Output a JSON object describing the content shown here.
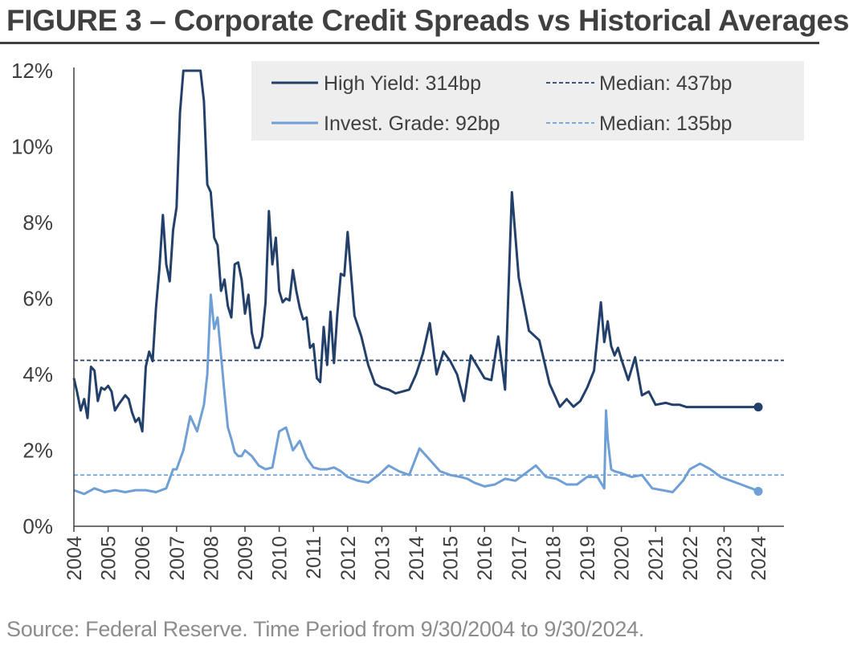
{
  "title": "FIGURE 3 – Corporate Credit Spreads vs Historical Averages",
  "source": "Source: Federal Reserve. Time Period from 9/30/2004 to 9/30/2024.",
  "colors": {
    "high_yield": "#23406b",
    "invest_grade": "#6f9fd4",
    "legend_bg": "#eeeeee",
    "axis": "#404040",
    "text": "#3f3f3f"
  },
  "chart_data": {
    "type": "line",
    "title": "FIGURE 3 – Corporate Credit Spreads vs Historical Averages",
    "xlabel": "",
    "ylabel": "",
    "xlim": [
      2004,
      2024.75
    ],
    "ylim": [
      0,
      12
    ],
    "y_ticks": [
      "0%",
      "2%",
      "4%",
      "6%",
      "8%",
      "10%",
      "12%"
    ],
    "x_ticks": [
      "2004",
      "2005",
      "2006",
      "2007",
      "2008",
      "2009",
      "2010",
      "2011",
      "2012",
      "2013",
      "2014",
      "2015",
      "2016",
      "2017",
      "2018",
      "2019",
      "2020",
      "2021",
      "2022",
      "2023",
      "2024"
    ],
    "legend": {
      "position": "top-right",
      "entries": [
        {
          "label": "High Yield: 314bp",
          "series": "high_yield",
          "style": "solid"
        },
        {
          "label": "Median: 437bp",
          "series": "high_yield_median",
          "style": "dashed"
        },
        {
          "label": "Invest. Grade: 92bp",
          "series": "invest_grade",
          "style": "solid"
        },
        {
          "label": "Median: 135bp",
          "series": "invest_grade_median",
          "style": "dashed"
        }
      ]
    },
    "medians": {
      "high_yield": 4.37,
      "invest_grade": 1.35
    },
    "series": [
      {
        "name": "High Yield",
        "x": [
          2004.0,
          2004.1,
          2004.2,
          2004.3,
          2004.4,
          2004.5,
          2004.6,
          2004.7,
          2004.8,
          2004.9,
          2005.0,
          2005.1,
          2005.2,
          2005.3,
          2005.5,
          2005.6,
          2005.7,
          2005.8,
          2005.9,
          2006.0,
          2006.1,
          2006.2,
          2006.3,
          2006.4,
          2006.5,
          2006.6,
          2006.7,
          2006.8,
          2006.9,
          2007.0,
          2007.1,
          2007.2,
          2007.3,
          2007.4,
          2007.5,
          2007.6,
          2007.7,
          2007.8,
          2007.9,
          2008.0,
          2008.1,
          2008.2,
          2008.3,
          2008.4,
          2008.5,
          2008.6,
          2008.7,
          2008.8,
          2008.9,
          2009.0,
          2009.1,
          2009.2,
          2009.3,
          2009.4,
          2009.5,
          2009.6,
          2009.7,
          2009.8,
          2009.9,
          2010.0,
          2010.1,
          2010.2,
          2010.3,
          2010.4,
          2010.5,
          2010.6,
          2010.7,
          2010.8,
          2010.9,
          2011.0,
          2011.1,
          2011.2,
          2011.3,
          2011.4,
          2011.5,
          2011.6,
          2011.7,
          2011.8,
          2011.9,
          2012.0,
          2012.2,
          2012.4,
          2012.6,
          2012.8,
          2013.0,
          2013.2,
          2013.4,
          2013.6,
          2013.8,
          2014.0,
          2014.2,
          2014.4,
          2014.6,
          2014.8,
          2015.0,
          2015.2,
          2015.4,
          2015.6,
          2015.8,
          2016.0,
          2016.2,
          2016.4,
          2016.6,
          2016.8,
          2017.0,
          2017.3,
          2017.6,
          2017.9,
          2018.2,
          2018.4,
          2018.6,
          2018.8,
          2019.0,
          2019.2,
          2019.4,
          2019.5,
          2019.6,
          2019.7,
          2019.8,
          2019.9,
          2020.0,
          2020.2,
          2020.4,
          2020.6,
          2020.8,
          2021.0,
          2021.3,
          2021.5,
          2021.7,
          2021.9,
          2022.0,
          2022.2,
          2022.4,
          2022.6,
          2022.8,
          2023.0,
          2023.2,
          2023.4,
          2023.6,
          2023.8,
          2024.0
        ],
        "y": [
          3.9,
          3.5,
          3.05,
          3.35,
          2.85,
          4.2,
          4.1,
          3.3,
          3.65,
          3.6,
          3.7,
          3.55,
          3.05,
          3.2,
          3.45,
          3.35,
          3.0,
          2.75,
          2.85,
          2.5,
          4.2,
          4.6,
          4.35,
          5.75,
          6.8,
          8.2,
          6.9,
          6.45,
          7.8,
          8.4,
          10.9,
          12.0,
          12.0,
          12.0,
          12.0,
          12.0,
          12.0,
          11.2,
          9.0,
          8.8,
          7.6,
          7.4,
          6.2,
          6.5,
          5.8,
          5.5,
          6.9,
          6.95,
          6.5,
          5.6,
          6.1,
          5.1,
          4.7,
          4.7,
          5.0,
          5.9,
          8.3,
          6.9,
          7.6,
          6.2,
          5.9,
          6.0,
          5.95,
          6.75,
          6.2,
          5.75,
          5.45,
          5.5,
          4.7,
          4.8,
          3.9,
          3.8,
          5.25,
          4.25,
          5.65,
          4.3,
          5.6,
          6.65,
          6.6,
          7.75,
          5.55,
          5.0,
          4.25,
          3.75,
          3.65,
          3.6,
          3.5,
          3.55,
          3.6,
          4.0,
          4.55,
          5.35,
          4.0,
          4.6,
          4.35,
          4.0,
          3.3,
          4.5,
          4.2,
          3.9,
          3.85,
          5.0,
          3.6,
          8.8,
          6.55,
          5.15,
          4.9,
          3.75,
          3.15,
          3.35,
          3.15,
          3.3,
          3.65,
          4.1,
          5.9,
          4.85,
          5.4,
          4.75,
          4.5,
          4.7,
          4.4,
          3.85,
          4.45,
          3.45,
          3.55,
          3.2,
          3.25,
          3.2,
          3.2,
          3.14,
          3.14,
          3.14,
          3.14,
          3.14,
          3.14,
          3.14,
          3.14,
          3.14,
          3.14,
          3.14,
          3.14
        ],
        "color": "#23406b"
      },
      {
        "name": "Invest. Grade",
        "x": [
          2004.0,
          2004.3,
          2004.6,
          2004.9,
          2005.2,
          2005.5,
          2005.8,
          2006.1,
          2006.4,
          2006.7,
          2006.9,
          2007.0,
          2007.2,
          2007.4,
          2007.6,
          2007.8,
          2007.9,
          2008.0,
          2008.1,
          2008.2,
          2008.3,
          2008.4,
          2008.5,
          2008.6,
          2008.7,
          2008.8,
          2008.9,
          2009.0,
          2009.2,
          2009.4,
          2009.6,
          2009.8,
          2010.0,
          2010.2,
          2010.4,
          2010.6,
          2010.8,
          2011.0,
          2011.2,
          2011.4,
          2011.6,
          2011.8,
          2012.0,
          2012.3,
          2012.6,
          2012.9,
          2013.2,
          2013.5,
          2013.8,
          2014.1,
          2014.4,
          2014.7,
          2015.0,
          2015.3,
          2015.5,
          2015.7,
          2016.0,
          2016.3,
          2016.6,
          2016.9,
          2017.2,
          2017.5,
          2017.8,
          2018.1,
          2018.4,
          2018.7,
          2019.0,
          2019.3,
          2019.5,
          2019.55,
          2019.6,
          2019.7,
          2019.8,
          2020.0,
          2020.3,
          2020.6,
          2020.9,
          2021.2,
          2021.5,
          2021.8,
          2022.0,
          2022.3,
          2022.6,
          2022.9,
          2023.2,
          2023.5,
          2023.8,
          2024.0
        ],
        "y": [
          0.95,
          0.85,
          1.0,
          0.9,
          0.95,
          0.9,
          0.95,
          0.95,
          0.9,
          1.0,
          1.5,
          1.5,
          2.0,
          2.9,
          2.5,
          3.2,
          4.0,
          6.1,
          5.2,
          5.5,
          4.5,
          3.5,
          2.6,
          2.3,
          1.95,
          1.85,
          1.85,
          2.0,
          1.85,
          1.6,
          1.5,
          1.55,
          2.5,
          2.6,
          2.0,
          2.25,
          1.8,
          1.55,
          1.5,
          1.5,
          1.55,
          1.45,
          1.3,
          1.2,
          1.15,
          1.35,
          1.6,
          1.45,
          1.35,
          2.05,
          1.75,
          1.45,
          1.35,
          1.3,
          1.25,
          1.15,
          1.05,
          1.1,
          1.25,
          1.2,
          1.4,
          1.6,
          1.3,
          1.25,
          1.1,
          1.1,
          1.3,
          1.3,
          1.0,
          3.05,
          2.3,
          1.5,
          1.45,
          1.4,
          1.3,
          1.35,
          1.0,
          0.95,
          0.9,
          1.2,
          1.5,
          1.65,
          1.5,
          1.3,
          1.2,
          1.1,
          1.0,
          0.92
        ],
        "color": "#6f9fd4"
      }
    ]
  }
}
